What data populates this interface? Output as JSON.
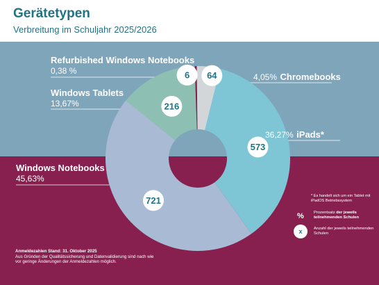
{
  "title": "Gerätetypen",
  "subtitle": "Verbreitung im Schuljahr 2025/2026",
  "chart_data": {
    "type": "pie",
    "title": "Gerätetypen",
    "subtitle": "Verbreitung im Schuljahr 2025/2026",
    "categories": [
      "Refurbished Windows Notebooks",
      "Chromebooks",
      "iPads",
      "Windows Notebooks",
      "Windows Tablets"
    ],
    "percent": [
      0.38,
      4.05,
      36.27,
      45.63,
      13.67
    ],
    "percent_labels": [
      "0,38 %",
      "4,05%",
      "36,27%",
      "45,63%",
      "13,67%"
    ],
    "counts": [
      6,
      64,
      573,
      721,
      216
    ],
    "count_labels": [
      "6",
      "64",
      "573",
      "721",
      "216"
    ],
    "colors": [
      "#87204f",
      "#d3d6d9",
      "#7ec6d5",
      "#a9bbd4",
      "#8dbfb2"
    ],
    "legend_labels": [
      "Refurbished Windows Notebooks",
      "Chromebooks",
      "iPads*",
      "Windows Notebooks",
      "Windows Tablets"
    ]
  },
  "labels": {
    "refurbished": {
      "name": "Refurbished Windows Notebooks",
      "pct": "0,38 %"
    },
    "tablets": {
      "name": "Windows Tablets",
      "pct": "13,67%"
    },
    "notebooks": {
      "name": "Windows Notebooks",
      "pct": "45,63%"
    },
    "chromebooks": {
      "pct": "4,05%",
      "name": "Chromebooks"
    },
    "ipads": {
      "pct": "36,27%",
      "name": "iPads*"
    }
  },
  "notes": {
    "stand_bold": "Anmeldezahlen Stand:  31. Oktober 2025",
    "stand_text": "Aus Gründen der Qualitätssicherung und Datenvalidierung sind nach wie vor geringe Änderungen der Anmeldezahlen möglich.",
    "ipad_note": "* Es handelt sich um ein Tablet mit iPadOS Betriebssystem"
  },
  "legend": {
    "pct_symbol": "%",
    "pct_text": "Prozentsatz",
    "pct_text_bold": "der jeweils teilnehmenden Schulen",
    "count_symbol": "x",
    "count_text": "Anzahl der jeweils teilnehmenden Schulen"
  },
  "colors": {
    "title": "#1f7385",
    "band_top": "#7fa5bb",
    "band_bottom": "#87204f"
  }
}
